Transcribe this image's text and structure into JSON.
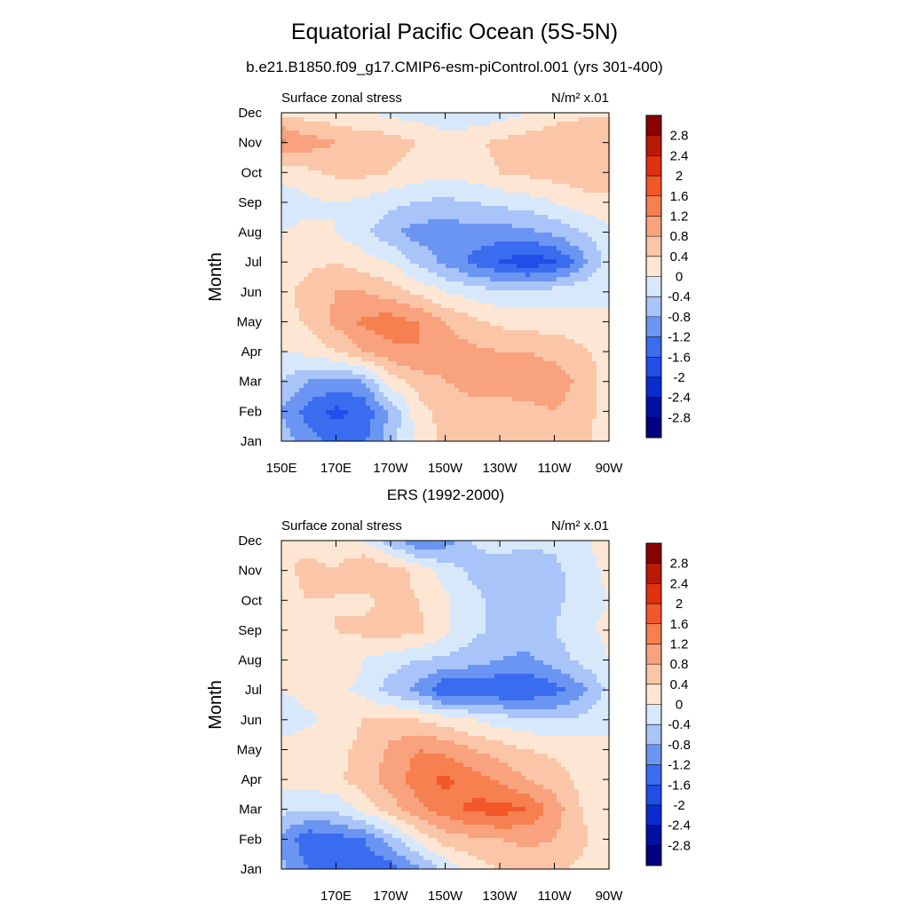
{
  "figure": {
    "title": "Equatorial Pacific Ocean (5S-5N)",
    "subtitle": "b.e21.B1850.f09_g17.CMIP6-esm-piControl.001 (yrs 301-400)",
    "second_panel_title": "ERS (1992-2000)"
  },
  "colors": {
    "levels": [
      "#000080",
      "#0010a0",
      "#0a2cd0",
      "#1f4ee8",
      "#3a6cf0",
      "#6b95f2",
      "#a8c4f8",
      "#d8e8fb",
      "#fde7d4",
      "#fbc6a8",
      "#f9a27e",
      "#f6804f",
      "#f2572a",
      "#e03010",
      "#b81a05",
      "#8b0000"
    ],
    "contour_bounds": [
      -3.2,
      -2.8,
      -2.4,
      -2.0,
      -1.6,
      -1.2,
      -0.8,
      -0.4,
      0,
      0.4,
      0.8,
      1.2,
      1.6,
      2.0,
      2.4,
      2.8,
      3.2
    ]
  },
  "chart_data": [
    {
      "type": "heatmap",
      "left_label": "Surface zonal stress",
      "right_label": "N/m² x.01",
      "ylabel": "Month",
      "x_ticks": [
        "150E",
        "170E",
        "170W",
        "150W",
        "130W",
        "110W",
        "90W"
      ],
      "y_ticks": [
        "Jan",
        "Feb",
        "Mar",
        "Apr",
        "May",
        "Jun",
        "Jul",
        "Aug",
        "Sep",
        "Oct",
        "Nov",
        "Dec"
      ],
      "colorbar_labels": [
        "2.8",
        "2.4",
        "2",
        "1.6",
        "1.2",
        "0.8",
        "0.4",
        "0",
        "-0.4",
        "-0.8",
        "-1.2",
        "-1.6",
        "-2",
        "-2.4",
        "-2.8"
      ],
      "x_range": [
        150,
        270
      ],
      "x_values": [
        150,
        160,
        170,
        180,
        190,
        200,
        210,
        220,
        230,
        240,
        250,
        260,
        270
      ],
      "y_values": [
        "Jan",
        "Feb",
        "Mar",
        "Apr",
        "May",
        "Jun",
        "Jul",
        "Aug",
        "Sep",
        "Oct",
        "Nov",
        "Dec"
      ],
      "grid_values": [
        [
          -0.6,
          -1.0,
          -1.4,
          -1.3,
          -0.6,
          0.1,
          0.5,
          0.6,
          0.6,
          0.6,
          0.7,
          0.5,
          0.2
        ],
        [
          -0.8,
          -1.4,
          -1.7,
          -1.5,
          -0.7,
          0.2,
          0.6,
          0.7,
          0.7,
          0.7,
          0.8,
          0.6,
          0.2
        ],
        [
          -0.4,
          -0.8,
          -1.0,
          -0.8,
          0.2,
          0.6,
          0.8,
          0.9,
          0.9,
          1.0,
          1.0,
          0.7,
          0.2
        ],
        [
          0.0,
          0.1,
          0.4,
          0.8,
          1.1,
          1.2,
          1.0,
          0.9,
          0.8,
          0.8,
          0.7,
          0.5,
          0.2
        ],
        [
          0.2,
          0.5,
          0.9,
          1.3,
          1.4,
          1.2,
          0.8,
          0.5,
          0.3,
          0.2,
          0.2,
          0.1,
          0.0
        ],
        [
          0.2,
          0.6,
          0.8,
          0.8,
          0.6,
          0.3,
          0.0,
          -0.2,
          -0.3,
          -0.3,
          -0.2,
          -0.1,
          0.0
        ],
        [
          0.1,
          0.3,
          0.4,
          0.2,
          0.0,
          -0.5,
          -0.9,
          -1.3,
          -1.6,
          -1.9,
          -1.7,
          -1.0,
          -0.2
        ],
        [
          0.0,
          0.1,
          0.0,
          -0.3,
          -0.7,
          -1.0,
          -1.0,
          -1.0,
          -1.0,
          -0.9,
          -0.7,
          -0.4,
          -0.1
        ],
        [
          -0.2,
          -0.1,
          0.0,
          -0.1,
          -0.3,
          -0.4,
          -0.5,
          -0.4,
          -0.3,
          -0.2,
          0.0,
          0.2,
          0.3
        ],
        [
          0.1,
          0.3,
          0.5,
          0.5,
          0.4,
          0.2,
          0.1,
          0.2,
          0.4,
          0.5,
          0.6,
          0.7,
          0.7
        ],
        [
          1.3,
          1.0,
          0.8,
          0.7,
          0.6,
          0.4,
          0.2,
          0.3,
          0.5,
          0.6,
          0.7,
          0.8,
          0.8
        ],
        [
          0.3,
          0.2,
          0.1,
          0.0,
          -0.1,
          -0.2,
          -0.3,
          -0.3,
          -0.2,
          0.0,
          0.2,
          0.3,
          0.3
        ]
      ]
    },
    {
      "type": "heatmap",
      "left_label": "Surface zonal stress",
      "right_label": "N/m² x.01",
      "ylabel": "Month",
      "x_ticks": [
        "170E",
        "170W",
        "150W",
        "130W",
        "110W",
        "90W"
      ],
      "y_ticks": [
        "Jan",
        "Feb",
        "Mar",
        "Apr",
        "May",
        "Jun",
        "Jul",
        "Aug",
        "Sep",
        "Oct",
        "Nov",
        "Dec"
      ],
      "colorbar_labels": [
        "2.8",
        "2.4",
        "2",
        "1.6",
        "1.2",
        "0.8",
        "0.4",
        "0",
        "-0.4",
        "-0.8",
        "-1.2",
        "-1.6",
        "-2",
        "-2.4",
        "-2.8"
      ],
      "x_range": [
        150,
        270
      ],
      "x_values": [
        150,
        160,
        170,
        180,
        190,
        200,
        210,
        220,
        230,
        240,
        250,
        260,
        270
      ],
      "y_values": [
        "Jan",
        "Feb",
        "Mar",
        "Apr",
        "May",
        "Jun",
        "Jul",
        "Aug",
        "Sep",
        "Oct",
        "Nov",
        "Dec"
      ],
      "grid_values": [
        [
          -0.7,
          -1.2,
          -1.5,
          -1.6,
          -1.4,
          -0.9,
          -0.3,
          0.2,
          0.4,
          0.6,
          0.5,
          0.3,
          0.1
        ],
        [
          -0.9,
          -1.5,
          -1.4,
          -1.2,
          -0.6,
          0.1,
          0.6,
          0.7,
          0.8,
          0.9,
          0.8,
          0.5,
          0.0
        ],
        [
          -0.3,
          -0.4,
          -0.3,
          0.1,
          0.6,
          1.1,
          1.4,
          1.7,
          1.8,
          1.6,
          1.0,
          0.4,
          0.1
        ],
        [
          0.1,
          0.2,
          0.3,
          0.6,
          1.0,
          1.4,
          1.7,
          1.4,
          1.1,
          0.8,
          0.6,
          0.3,
          0.1
        ],
        [
          0.2,
          0.3,
          0.3,
          0.5,
          0.9,
          1.2,
          1.1,
          0.8,
          0.6,
          0.4,
          0.3,
          0.2,
          0.1
        ],
        [
          -0.3,
          -0.1,
          0.2,
          0.4,
          0.5,
          0.4,
          0.2,
          0.0,
          -0.2,
          -0.3,
          -0.4,
          -0.3,
          -0.1
        ],
        [
          0.0,
          0.2,
          0.1,
          -0.1,
          -0.6,
          -0.9,
          -1.6,
          -1.5,
          -1.6,
          -1.6,
          -1.4,
          -0.9,
          -0.3
        ],
        [
          0.1,
          0.2,
          0.3,
          0.0,
          -0.2,
          -0.4,
          -0.5,
          -0.6,
          -0.8,
          -0.9,
          -0.6,
          -0.3,
          0.0
        ],
        [
          0.2,
          0.3,
          0.4,
          0.5,
          0.6,
          0.5,
          0.1,
          -0.3,
          -0.5,
          -0.6,
          -0.4,
          -0.1,
          0.1
        ],
        [
          0.3,
          0.4,
          0.4,
          0.3,
          0.5,
          0.4,
          0.1,
          -0.3,
          -0.5,
          -0.6,
          -0.5,
          -0.2,
          0.0
        ],
        [
          0.3,
          0.5,
          0.4,
          0.8,
          0.6,
          0.3,
          -0.2,
          -0.5,
          -0.6,
          -0.7,
          -0.5,
          -0.2,
          0.1
        ],
        [
          0.4,
          0.3,
          0.2,
          0.0,
          -0.6,
          -1.2,
          -1.0,
          -0.4,
          -0.2,
          -0.3,
          -0.3,
          -0.1,
          0.2
        ]
      ]
    }
  ]
}
